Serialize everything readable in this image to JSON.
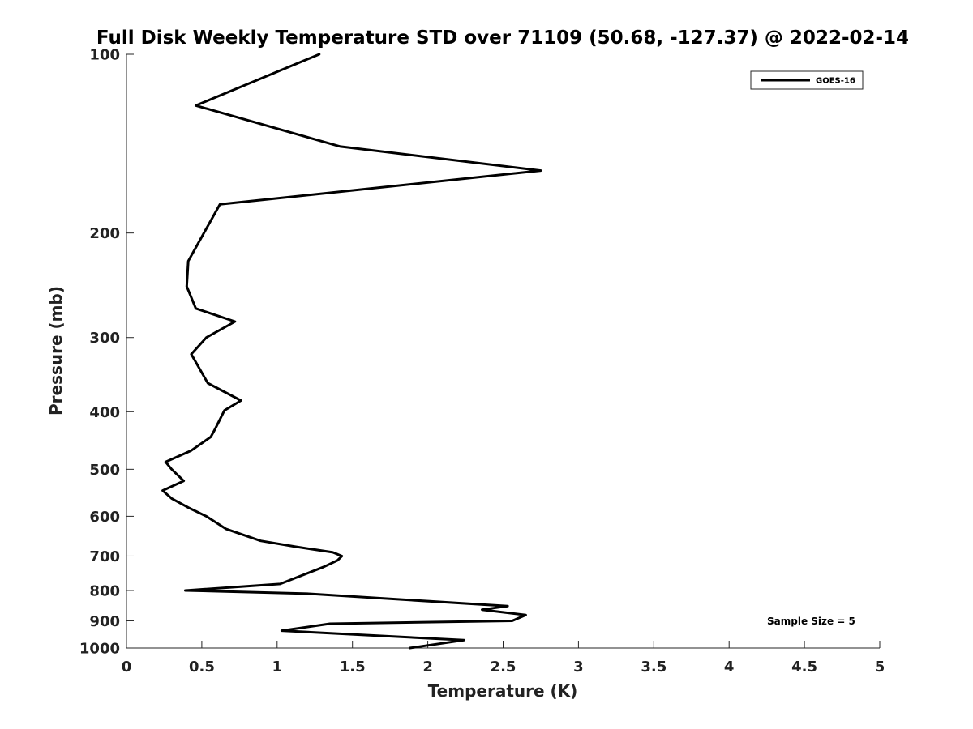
{
  "chart_data": {
    "type": "line",
    "title": "Full Disk Weekly Temperature STD over 71109 (50.68, -127.37) @ 2022-02-14",
    "xlabel": "Temperature (K)",
    "ylabel": "Pressure (mb)",
    "xlim": [
      0,
      5
    ],
    "ylim": [
      100,
      1000
    ],
    "y_scale": "log",
    "y_reversed": true,
    "x_ticks": [
      0,
      0.5,
      1,
      1.5,
      2,
      2.5,
      3,
      3.5,
      4,
      4.5,
      5
    ],
    "x_tick_labels": [
      "0",
      "0.5",
      "1",
      "1.5",
      "2",
      "2.5",
      "3",
      "3.5",
      "4",
      "4.5",
      "5"
    ],
    "y_ticks": [
      100,
      200,
      300,
      400,
      500,
      600,
      700,
      800,
      900,
      1000
    ],
    "y_tick_labels": [
      "100",
      "200",
      "300",
      "400",
      "500",
      "600",
      "700",
      "800",
      "900",
      "1000"
    ],
    "grid": false,
    "legend": {
      "position": "top-right"
    },
    "series": [
      {
        "name": "GOES-16",
        "color": "#000000",
        "points": [
          [
            1.28,
            100
          ],
          [
            0.46,
            122
          ],
          [
            1.42,
            143
          ],
          [
            2.75,
            157
          ],
          [
            0.62,
            179
          ],
          [
            0.41,
            223
          ],
          [
            0.4,
            246
          ],
          [
            0.46,
            268
          ],
          [
            0.72,
            282
          ],
          [
            0.53,
            300
          ],
          [
            0.43,
            320
          ],
          [
            0.54,
            358
          ],
          [
            0.76,
            383
          ],
          [
            0.65,
            398
          ],
          [
            0.59,
            427
          ],
          [
            0.56,
            441
          ],
          [
            0.43,
            465
          ],
          [
            0.26,
            486
          ],
          [
            0.3,
            500
          ],
          [
            0.38,
            523
          ],
          [
            0.24,
            543
          ],
          [
            0.3,
            560
          ],
          [
            0.41,
            580
          ],
          [
            0.53,
            600
          ],
          [
            0.66,
            630
          ],
          [
            0.89,
            660
          ],
          [
            1.12,
            675
          ],
          [
            1.37,
            690
          ],
          [
            1.43,
            700
          ],
          [
            1.4,
            712
          ],
          [
            1.31,
            730
          ],
          [
            1.02,
            780
          ],
          [
            0.39,
            800
          ],
          [
            1.2,
            810
          ],
          [
            2.53,
            850
          ],
          [
            2.36,
            862
          ],
          [
            2.65,
            880
          ],
          [
            2.56,
            900
          ],
          [
            1.35,
            910
          ],
          [
            1.03,
            935
          ],
          [
            2.24,
            970
          ],
          [
            1.88,
            1000
          ]
        ]
      }
    ],
    "annotations": [
      "Sample Size = 5"
    ]
  }
}
